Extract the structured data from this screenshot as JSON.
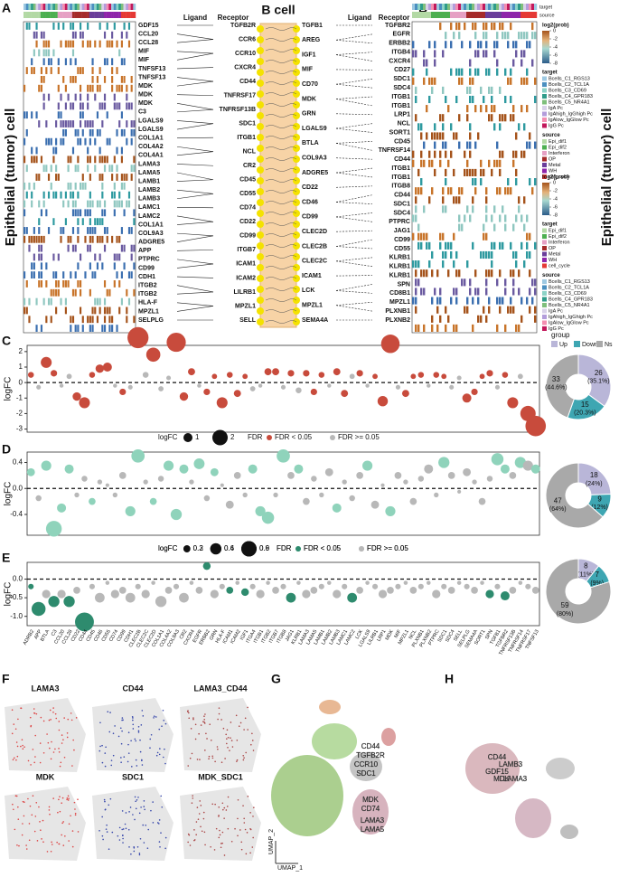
{
  "panel_labels": [
    "A",
    "B",
    "C",
    "D",
    "E",
    "F",
    "G",
    "H"
  ],
  "heatmap_a": {
    "ylabel": "Epithelial (tumor) cell",
    "ligand_header": "Ligand",
    "receptor_header": "Receptor",
    "ligands": [
      "GDF15",
      "CCL20",
      "CCL28",
      "MIF",
      "MIF",
      "TNFSF13",
      "TNFSF13",
      "MDK",
      "MDK",
      "MDK",
      "C3",
      "LGALS9",
      "LGALS9",
      "COL1A1",
      "COL4A2",
      "COL4A1",
      "LAMA3",
      "LAMA5",
      "LAMB1",
      "LAMB2",
      "LAMB3",
      "LAMC1",
      "LAMC2",
      "COL1A1",
      "COL9A3",
      "ADGRE5",
      "APP",
      "PTPRC",
      "CD99",
      "CDH1",
      "ITGB2",
      "ITGB2",
      "HLA-F",
      "MPZL1",
      "SELPLG"
    ],
    "receptors": [
      "TGFB2R",
      "CCR6",
      "CCR10",
      "CXCR4",
      "CD44",
      "TNFRSF17",
      "TNFRSF13B",
      "SDC1",
      "ITGB1",
      "NCL",
      "CR2",
      "CD45",
      "CD55",
      "CD74",
      "CD22",
      "CD99",
      "ITGB7",
      "ICAM1",
      "ICAM2",
      "LILRB1",
      "MPZL1",
      "SELL"
    ]
  },
  "center_label": "B cell",
  "heatmap_b": {
    "ylabel": "Epithelial (tumor) cell",
    "ligand_header": "Ligand",
    "receptor_header": "Receptor",
    "top_labels": [
      "target",
      "source"
    ],
    "ligands": [
      "TGFB1",
      "AREG",
      "IGF1",
      "MIF",
      "CD70",
      "MDK",
      "GRN",
      "LGALS9",
      "BTLA",
      "COL9A3",
      "ADGRE5",
      "CD22",
      "CD46",
      "CD99",
      "CLEC2D",
      "CLEC2B",
      "CLEC2C",
      "ICAM1",
      "LCK",
      "MPZL1",
      "SEMA4A"
    ],
    "receptors": [
      "TGFBR2",
      "EGFR",
      "ERBB2",
      "ITGB4",
      "CXCR4",
      "CD27",
      "SDC1",
      "SDC4",
      "ITGB1",
      "ITGB1",
      "LRP1",
      "NCL",
      "SORT1",
      "CD45",
      "TNFRSF14",
      "CD44",
      "ITGB1",
      "ITGB1",
      "ITGB8",
      "CD44",
      "SDC1",
      "SDC4",
      "PTPRC",
      "JAG1",
      "CD99",
      "CD55",
      "KLRB1",
      "KLRB1",
      "KLRB1",
      "SPN",
      "CD8B1",
      "MPZL1",
      "PLXNB1",
      "PLXNB2"
    ]
  },
  "legend_a": {
    "title": "log2(prob)",
    "ticks": [
      0,
      -2,
      -4,
      -6,
      -8
    ],
    "target_title": "target",
    "targets": [
      "Bcells_C1_RGS13",
      "Bcells_C2_TCL1A",
      "Bcells_C3_CD69",
      "Bcells_C4_GPR183",
      "Bcells_C5_NR4A1",
      "IgA Pc",
      "IgAhigh_IgGhigh Pc",
      "IgAlow_IgGlow Pc",
      "IgG Pc"
    ],
    "target_colors": [
      "#9ec9e2",
      "#4a8fc0",
      "#8cd3c7",
      "#2e9c8a",
      "#7fbf7b",
      "#d9d2e9",
      "#b39ddb",
      "#f48fb1",
      "#c2185b"
    ],
    "source_title": "source",
    "sources": [
      "Epi_dif1",
      "Epi_dif2",
      "Interferon",
      "OP",
      "Metal",
      "WH",
      "cell_cycle"
    ],
    "source_colors": [
      "#b3d9a5",
      "#4caf50",
      "#e6a0c4",
      "#a52a2a",
      "#6a3d9a",
      "#8e24aa",
      "#e53935"
    ]
  },
  "legend_b": {
    "title": "log2(prob)",
    "ticks": [
      0,
      -2,
      -4,
      -6,
      -8
    ],
    "target_title": "target",
    "targets": [
      "Epi_dif1",
      "Epi_dif2",
      "Interferon",
      "OP",
      "Metal",
      "WH",
      "cell_cycle"
    ],
    "target_colors": [
      "#b3d9a5",
      "#4caf50",
      "#e6a0c4",
      "#a52a2a",
      "#6a3d9a",
      "#8e24aa",
      "#e53935"
    ],
    "source_title": "source",
    "sources": [
      "Bcells_C1_RGS13",
      "Bcells_C2_TCL1A",
      "Bcells_C3_CD69",
      "Bcells_C4_GPR183",
      "Bcells_C5_NR4A1",
      "IgA Pc",
      "IgAhigh_IgGhigh Pc",
      "IgAlow_IgGlow Pc",
      "IgG Pc"
    ],
    "source_colors": [
      "#9ec9e2",
      "#4a8fc0",
      "#8cd3c7",
      "#2e9c8a",
      "#7fbf7b",
      "#d9d2e9",
      "#b39ddb",
      "#f48fb1",
      "#c2185b"
    ]
  },
  "chart_data": [
    {
      "type": "bubble",
      "ylabel": "logFC",
      "ylim": [
        -3.2,
        2.4
      ],
      "yticks": [
        -3,
        -2,
        -1,
        0,
        1,
        2
      ],
      "sig_color": "#c84b3c",
      "ns_color": "#b8b8b8",
      "values": [
        0.5,
        -0.3,
        1.3,
        0.6,
        -0.2,
        0.4,
        -0.9,
        -1.3,
        0.5,
        0.9,
        1.0,
        -0.2,
        -0.6,
        -0.3,
        2.9,
        0.5,
        1.8,
        -0.4,
        0.3,
        2.6,
        -0.9,
        0.7,
        -0.2,
        -0.6,
        0.4,
        -1.3,
        0.5,
        -0.7,
        0.4,
        -0.4,
        -0.2,
        0.7,
        0.7,
        -0.3,
        0.6,
        -0.5,
        0.6,
        -0.6,
        0.5,
        -0.2,
        0.7,
        -0.7,
        0.4,
        0.6,
        -0.2,
        0.4,
        -1.2,
        2.5,
        -0.3,
        -0.7,
        0.4,
        0.5,
        -0.2,
        0.5,
        0.4,
        -0.3,
        0.3,
        -1.0,
        -0.6,
        0.4,
        0.6,
        -0.3,
        0.5,
        -1.3,
        0.4,
        -2.0,
        -2.8
      ],
      "significant": [
        1,
        0,
        1,
        1,
        0,
        0,
        1,
        1,
        1,
        1,
        1,
        0,
        1,
        0,
        1,
        0,
        1,
        0,
        0,
        1,
        1,
        1,
        0,
        1,
        1,
        1,
        1,
        1,
        1,
        0,
        0,
        1,
        1,
        0,
        1,
        0,
        1,
        1,
        1,
        0,
        1,
        1,
        0,
        1,
        0,
        1,
        1,
        1,
        0,
        1,
        1,
        1,
        0,
        1,
        1,
        0,
        0,
        1,
        1,
        1,
        1,
        0,
        1,
        1,
        0,
        1,
        1
      ],
      "size_legend": {
        "title": "logFC",
        "values": [
          1,
          2
        ]
      },
      "color_legend": {
        "title": "FDR",
        "labels": [
          "FDR < 0.05",
          "FDR >= 0.05"
        ]
      }
    },
    {
      "type": "pie",
      "legend_title": "group",
      "names": [
        "Up",
        "Down",
        "Ns"
      ],
      "values": [
        26,
        15,
        33
      ],
      "percent_labels": [
        "(35.1%)",
        "(20.3%)",
        "(44.6%)"
      ],
      "colors": [
        "#b9b6d8",
        "#3ea6b2",
        "#a9a9a9"
      ]
    },
    {
      "type": "bubble",
      "ylabel": "logFC",
      "ylim": [
        -0.72,
        0.56
      ],
      "yticks": [
        -0.4,
        {
          "value": 0,
          "label": "0.0"
        },
        0.4
      ],
      "sig_color": "#8fd3bb",
      "ns_color": "#b8b8b8",
      "values": [
        0.25,
        -0.15,
        0.35,
        -0.62,
        -0.3,
        0.3,
        -0.1,
        0.15,
        -0.2,
        0.1,
        0.05,
        -0.1,
        0.2,
        -0.35,
        0.5,
        0.1,
        -0.2,
        0.15,
        0.35,
        -0.4,
        0.3,
        0.1,
        0.38,
        -0.15,
        0.25,
        0.05,
        -0.25,
        0.2,
        -0.1,
        0.3,
        -0.35,
        -0.45,
        -0.1,
        0.5,
        0.2,
        0.3,
        -0.2,
        0.15,
        -0.1,
        0.25,
        -0.3,
        0.1,
        -0.15,
        0.2,
        0.35,
        -0.25,
        0.05,
        -0.35,
        0.2,
        0.1,
        -0.2,
        0.15,
        0.3,
        -0.1,
        0.4,
        0.2,
        -0.05,
        0.25,
        0.1,
        -0.2,
        0.15,
        0.45,
        0.3,
        0.2,
        0.4,
        0.35,
        0.3
      ],
      "significant": [
        1,
        0,
        1,
        1,
        1,
        1,
        0,
        0,
        1,
        0,
        0,
        0,
        0,
        1,
        1,
        0,
        1,
        0,
        1,
        1,
        1,
        0,
        1,
        0,
        1,
        0,
        0,
        0,
        0,
        1,
        1,
        1,
        0,
        1,
        0,
        1,
        0,
        0,
        0,
        0,
        1,
        0,
        0,
        0,
        1,
        0,
        0,
        1,
        0,
        0,
        0,
        0,
        0,
        0,
        1,
        0,
        0,
        0,
        0,
        0,
        0,
        1,
        1,
        0,
        1,
        0,
        1
      ],
      "size_legend": {
        "title": "logFC",
        "values": [
          0.2,
          0.4,
          0.6
        ]
      },
      "color_legend": {
        "title": "FDR",
        "labels": [
          "FDR < 0.05",
          "FDR >= 0.05"
        ]
      }
    },
    {
      "type": "pie",
      "values": [
        18,
        9,
        47
      ],
      "percent_labels": [
        "(24%)",
        "(12%)",
        "(64%)"
      ],
      "colors": [
        "#b9b6d8",
        "#3ea6b2",
        "#a9a9a9"
      ]
    },
    {
      "type": "bubble",
      "ylabel": "logFC",
      "ylim": [
        -1.25,
        0.45
      ],
      "yticks": [
        {
          "value": -1,
          "label": "-1.0"
        },
        -0.5,
        {
          "value": 0,
          "label": "0.0"
        }
      ],
      "sig_color": "#2e8b6e",
      "ns_color": "#b8b8b8",
      "categories": [
        "ADRB2",
        "APP",
        "BTLA",
        "C3",
        "CCL20",
        "CCL28",
        "CD22",
        "CD44",
        "CD45",
        "CD46",
        "CD55",
        "CD74",
        "CD99",
        "CDH1",
        "CLEC2B",
        "CLEC2C",
        "CLEC2D",
        "COL1A1",
        "COL4A2",
        "COL9A3",
        "CR2",
        "CXCR4",
        "EGFR",
        "ERBB2",
        "GRN",
        "HLA-F",
        "ICAM1",
        "ICAM2",
        "IGF1",
        "ITGA4",
        "ITGB1",
        "ITGB2",
        "ITGB7",
        "ITGB8",
        "JAG1",
        "KLRB1",
        "LAMA3",
        "LAMA5",
        "LAMB1",
        "LAMB2",
        "LAMB3",
        "LAMC1",
        "LAMC2",
        "LCK",
        "LGALS9",
        "LILRB1",
        "LRP1",
        "MDK",
        "MIF",
        "MPZL1",
        "NCL",
        "PLXNB1",
        "PLXNB2",
        "PTPRC",
        "SDC1",
        "SDC4",
        "SELL",
        "SELPLG",
        "SEMA4A",
        "SORT1",
        "SPN",
        "TGFB1",
        "TGFBR2",
        "TNFRSF13B",
        "TNFRSF14",
        "TNFRSF17",
        "TNFSF13"
      ],
      "values": [
        -0.2,
        -0.8,
        -0.4,
        -0.6,
        -0.4,
        -0.6,
        -0.3,
        -1.15,
        -0.2,
        -0.5,
        -0.1,
        -0.4,
        -0.3,
        -0.5,
        -0.2,
        -0.4,
        -0.1,
        -0.6,
        -0.3,
        -0.2,
        -0.5,
        -0.1,
        -0.3,
        0.35,
        -0.4,
        -0.2,
        -0.3,
        -0.1,
        -0.35,
        -0.2,
        -0.4,
        -0.1,
        -0.3,
        -0.2,
        -0.5,
        -0.1,
        -0.4,
        -0.3,
        -0.2,
        -0.1,
        -0.4,
        -0.2,
        -0.5,
        -0.3,
        -0.1,
        -0.2,
        -0.4,
        -0.3,
        -0.2,
        -0.1,
        -0.3,
        -0.2,
        -0.1,
        -0.4,
        -0.2,
        -0.3,
        -0.1,
        -0.2,
        -0.3,
        -0.1,
        -0.4,
        -0.2,
        -0.45,
        -0.3,
        -0.1,
        -0.2,
        -0.3
      ],
      "significant": [
        1,
        1,
        0,
        1,
        0,
        1,
        0,
        1,
        0,
        0,
        0,
        0,
        0,
        0,
        0,
        0,
        0,
        0,
        0,
        0,
        0,
        0,
        0,
        1,
        0,
        0,
        1,
        0,
        1,
        0,
        0,
        0,
        0,
        0,
        1,
        0,
        0,
        0,
        0,
        0,
        0,
        0,
        1,
        0,
        0,
        0,
        0,
        0,
        0,
        0,
        0,
        0,
        0,
        0,
        0,
        0,
        0,
        0,
        0,
        0,
        1,
        0,
        1,
        0,
        0,
        0,
        0
      ],
      "size_legend": {
        "title": "logFC",
        "values": [
          0.3,
          0.6,
          0.9
        ]
      },
      "color_legend": {
        "title": "FDR",
        "labels": [
          "FDR < 0.05",
          "FDR >= 0.05"
        ]
      }
    },
    {
      "type": "pie",
      "values": [
        8,
        7,
        59
      ],
      "percent_labels": [
        "(11%)",
        "(9%)",
        "(80%)"
      ],
      "colors": [
        "#b9b6d8",
        "#3ea6b2",
        "#a9a9a9"
      ]
    }
  ],
  "panel_f": {
    "titles": [
      "LAMA3",
      "CD44",
      "LAMA3_CD44",
      "MDK",
      "SDC1",
      "MDK_SDC1"
    ]
  },
  "panel_g": {
    "labels": [
      "CD44",
      "TGFB2R",
      "CCR10",
      "SDC1",
      "MDK",
      "CD74",
      "LAMA3",
      "LAMA5"
    ],
    "xlabel": "UMAP_1",
    "ylabel": "UMAP_2"
  },
  "panel_h": {
    "labels": [
      "CD44",
      "LAMB3",
      "GDF15",
      "MDK",
      "LAMA3"
    ]
  }
}
